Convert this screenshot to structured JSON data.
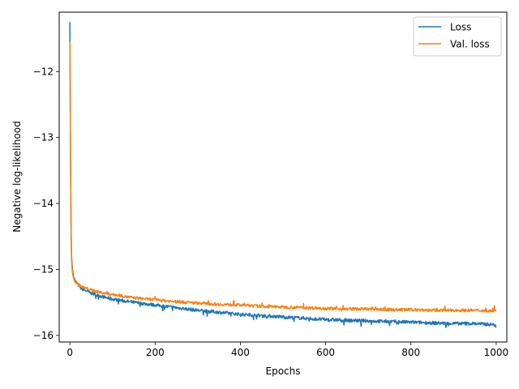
{
  "chart_data": {
    "type": "line",
    "title": "",
    "xlabel": "Epochs",
    "ylabel": "Negative log-likelihood",
    "xlim": [
      -25,
      1025
    ],
    "ylim": [
      -16.1,
      -11.1
    ],
    "xticks": [
      0,
      200,
      400,
      600,
      800,
      1000
    ],
    "yticks": [
      -12,
      -13,
      -14,
      -15,
      -16
    ],
    "ytick_labels": [
      "−12",
      "−13",
      "−14",
      "−15",
      "−16"
    ],
    "grid": false,
    "legend_position": "top-right",
    "series": [
      {
        "name": "Loss",
        "color": "#1f77b4",
        "x": [
          0,
          1,
          2,
          3,
          4,
          6,
          8,
          10,
          12,
          15,
          20,
          25,
          30,
          40,
          50,
          60,
          80,
          100,
          120,
          150,
          200,
          250,
          300,
          350,
          400,
          450,
          500,
          550,
          600,
          650,
          700,
          750,
          800,
          850,
          900,
          950,
          1000
        ],
        "values": [
          -11.25,
          -12.6,
          -13.7,
          -14.4,
          -14.8,
          -15.0,
          -15.08,
          -15.12,
          -15.17,
          -15.2,
          -15.24,
          -15.28,
          -15.3,
          -15.33,
          -15.36,
          -15.38,
          -15.42,
          -15.45,
          -15.47,
          -15.5,
          -15.54,
          -15.58,
          -15.62,
          -15.65,
          -15.68,
          -15.7,
          -15.72,
          -15.74,
          -15.76,
          -15.77,
          -15.78,
          -15.79,
          -15.8,
          -15.81,
          -15.82,
          -15.82,
          -15.84
        ],
        "noise": 0.025
      },
      {
        "name": "Val. loss",
        "color": "#ff7f0e",
        "x": [
          0,
          1,
          2,
          3,
          4,
          6,
          8,
          10,
          12,
          15,
          20,
          25,
          30,
          40,
          50,
          60,
          80,
          100,
          120,
          150,
          200,
          250,
          300,
          350,
          400,
          450,
          500,
          550,
          600,
          650,
          700,
          750,
          800,
          850,
          900,
          950,
          1000
        ],
        "values": [
          -11.55,
          -12.7,
          -13.8,
          -14.5,
          -14.85,
          -15.05,
          -15.12,
          -15.15,
          -15.18,
          -15.2,
          -15.23,
          -15.25,
          -15.27,
          -15.29,
          -15.31,
          -15.33,
          -15.36,
          -15.38,
          -15.4,
          -15.43,
          -15.46,
          -15.49,
          -15.51,
          -15.53,
          -15.54,
          -15.56,
          -15.57,
          -15.58,
          -15.59,
          -15.6,
          -15.6,
          -15.61,
          -15.61,
          -15.62,
          -15.62,
          -15.62,
          -15.63
        ],
        "noise": 0.022
      }
    ]
  }
}
